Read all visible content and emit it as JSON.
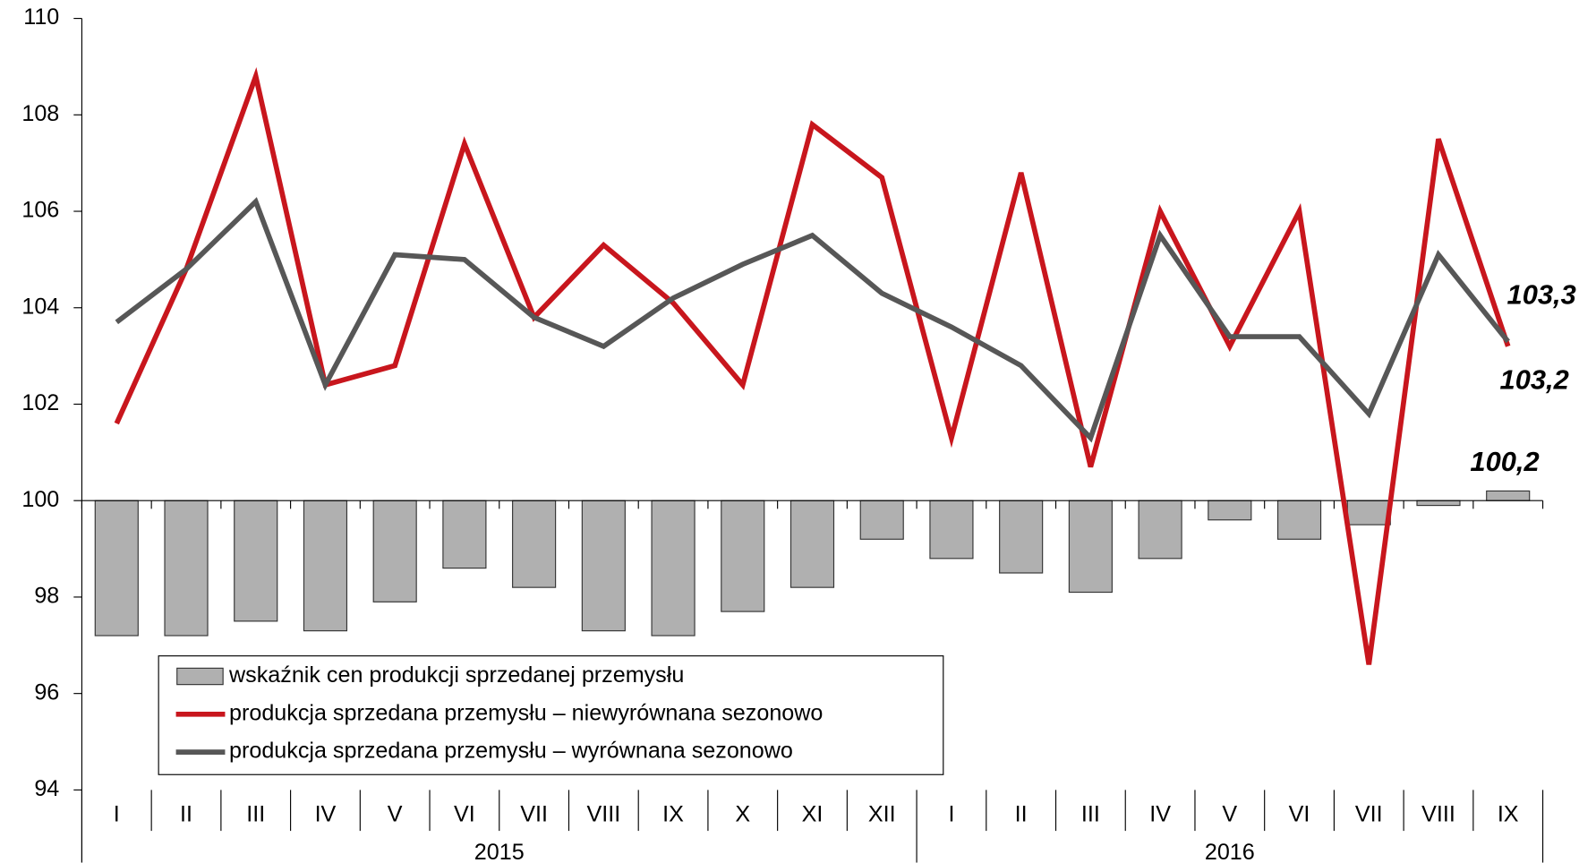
{
  "chart_data": {
    "type": "bar-line",
    "categories": [
      "I",
      "II",
      "III",
      "IV",
      "V",
      "VI",
      "VII",
      "VIII",
      "IX",
      "X",
      "XI",
      "XII",
      "I",
      "II",
      "III",
      "IV",
      "V",
      "VI",
      "VII",
      "VIII",
      "IX"
    ],
    "groups": [
      "2015",
      "2016"
    ],
    "series": [
      {
        "name": "wskaźnik cen produkcji sprzedanej przemysłu",
        "kind": "bar",
        "color": "#b0b0b0",
        "values": [
          97.2,
          97.2,
          97.5,
          97.3,
          97.9,
          98.6,
          98.2,
          97.3,
          97.2,
          97.7,
          98.2,
          99.2,
          98.8,
          98.5,
          98.1,
          98.8,
          99.6,
          99.2,
          99.5,
          99.9,
          100.2
        ],
        "value_labels": [
          null,
          null,
          null,
          null,
          null,
          null,
          null,
          null,
          null,
          null,
          null,
          null,
          null,
          null,
          null,
          null,
          null,
          null,
          null,
          null,
          "100,2"
        ],
        "label_color": "#a6a6a6"
      },
      {
        "name": "produkcja sprzedana przemysłu – niewyrównana sezonowo",
        "kind": "line",
        "color": "#c8161d",
        "values": [
          101.6,
          104.8,
          108.8,
          102.4,
          102.8,
          107.4,
          103.8,
          105.3,
          104.1,
          102.4,
          107.8,
          106.7,
          101.3,
          106.8,
          100.7,
          106.0,
          103.2,
          106.0,
          96.6,
          107.5,
          103.2
        ],
        "value_labels": [
          null,
          null,
          null,
          null,
          null,
          null,
          null,
          null,
          null,
          null,
          null,
          null,
          null,
          null,
          null,
          null,
          null,
          null,
          null,
          null,
          "103,2"
        ],
        "label_color": "#c8161d"
      },
      {
        "name": "produkcja sprzedana przemysłu –  wyrównana sezonowo",
        "kind": "line",
        "color": "#575757",
        "values": [
          103.7,
          104.8,
          106.2,
          102.4,
          105.1,
          105.0,
          103.8,
          103.2,
          104.2,
          104.9,
          105.5,
          104.3,
          103.6,
          102.8,
          101.3,
          105.5,
          103.4,
          103.4,
          101.8,
          105.1,
          103.3
        ],
        "value_labels": [
          null,
          null,
          null,
          null,
          null,
          null,
          null,
          null,
          null,
          null,
          null,
          null,
          null,
          null,
          null,
          null,
          null,
          null,
          null,
          null,
          "103,3"
        ],
        "label_color": "#595959"
      }
    ],
    "bar_base": 100,
    "ylim": [
      94,
      110
    ],
    "yticks": [
      94,
      96,
      98,
      100,
      102,
      104,
      106,
      108,
      110
    ]
  }
}
